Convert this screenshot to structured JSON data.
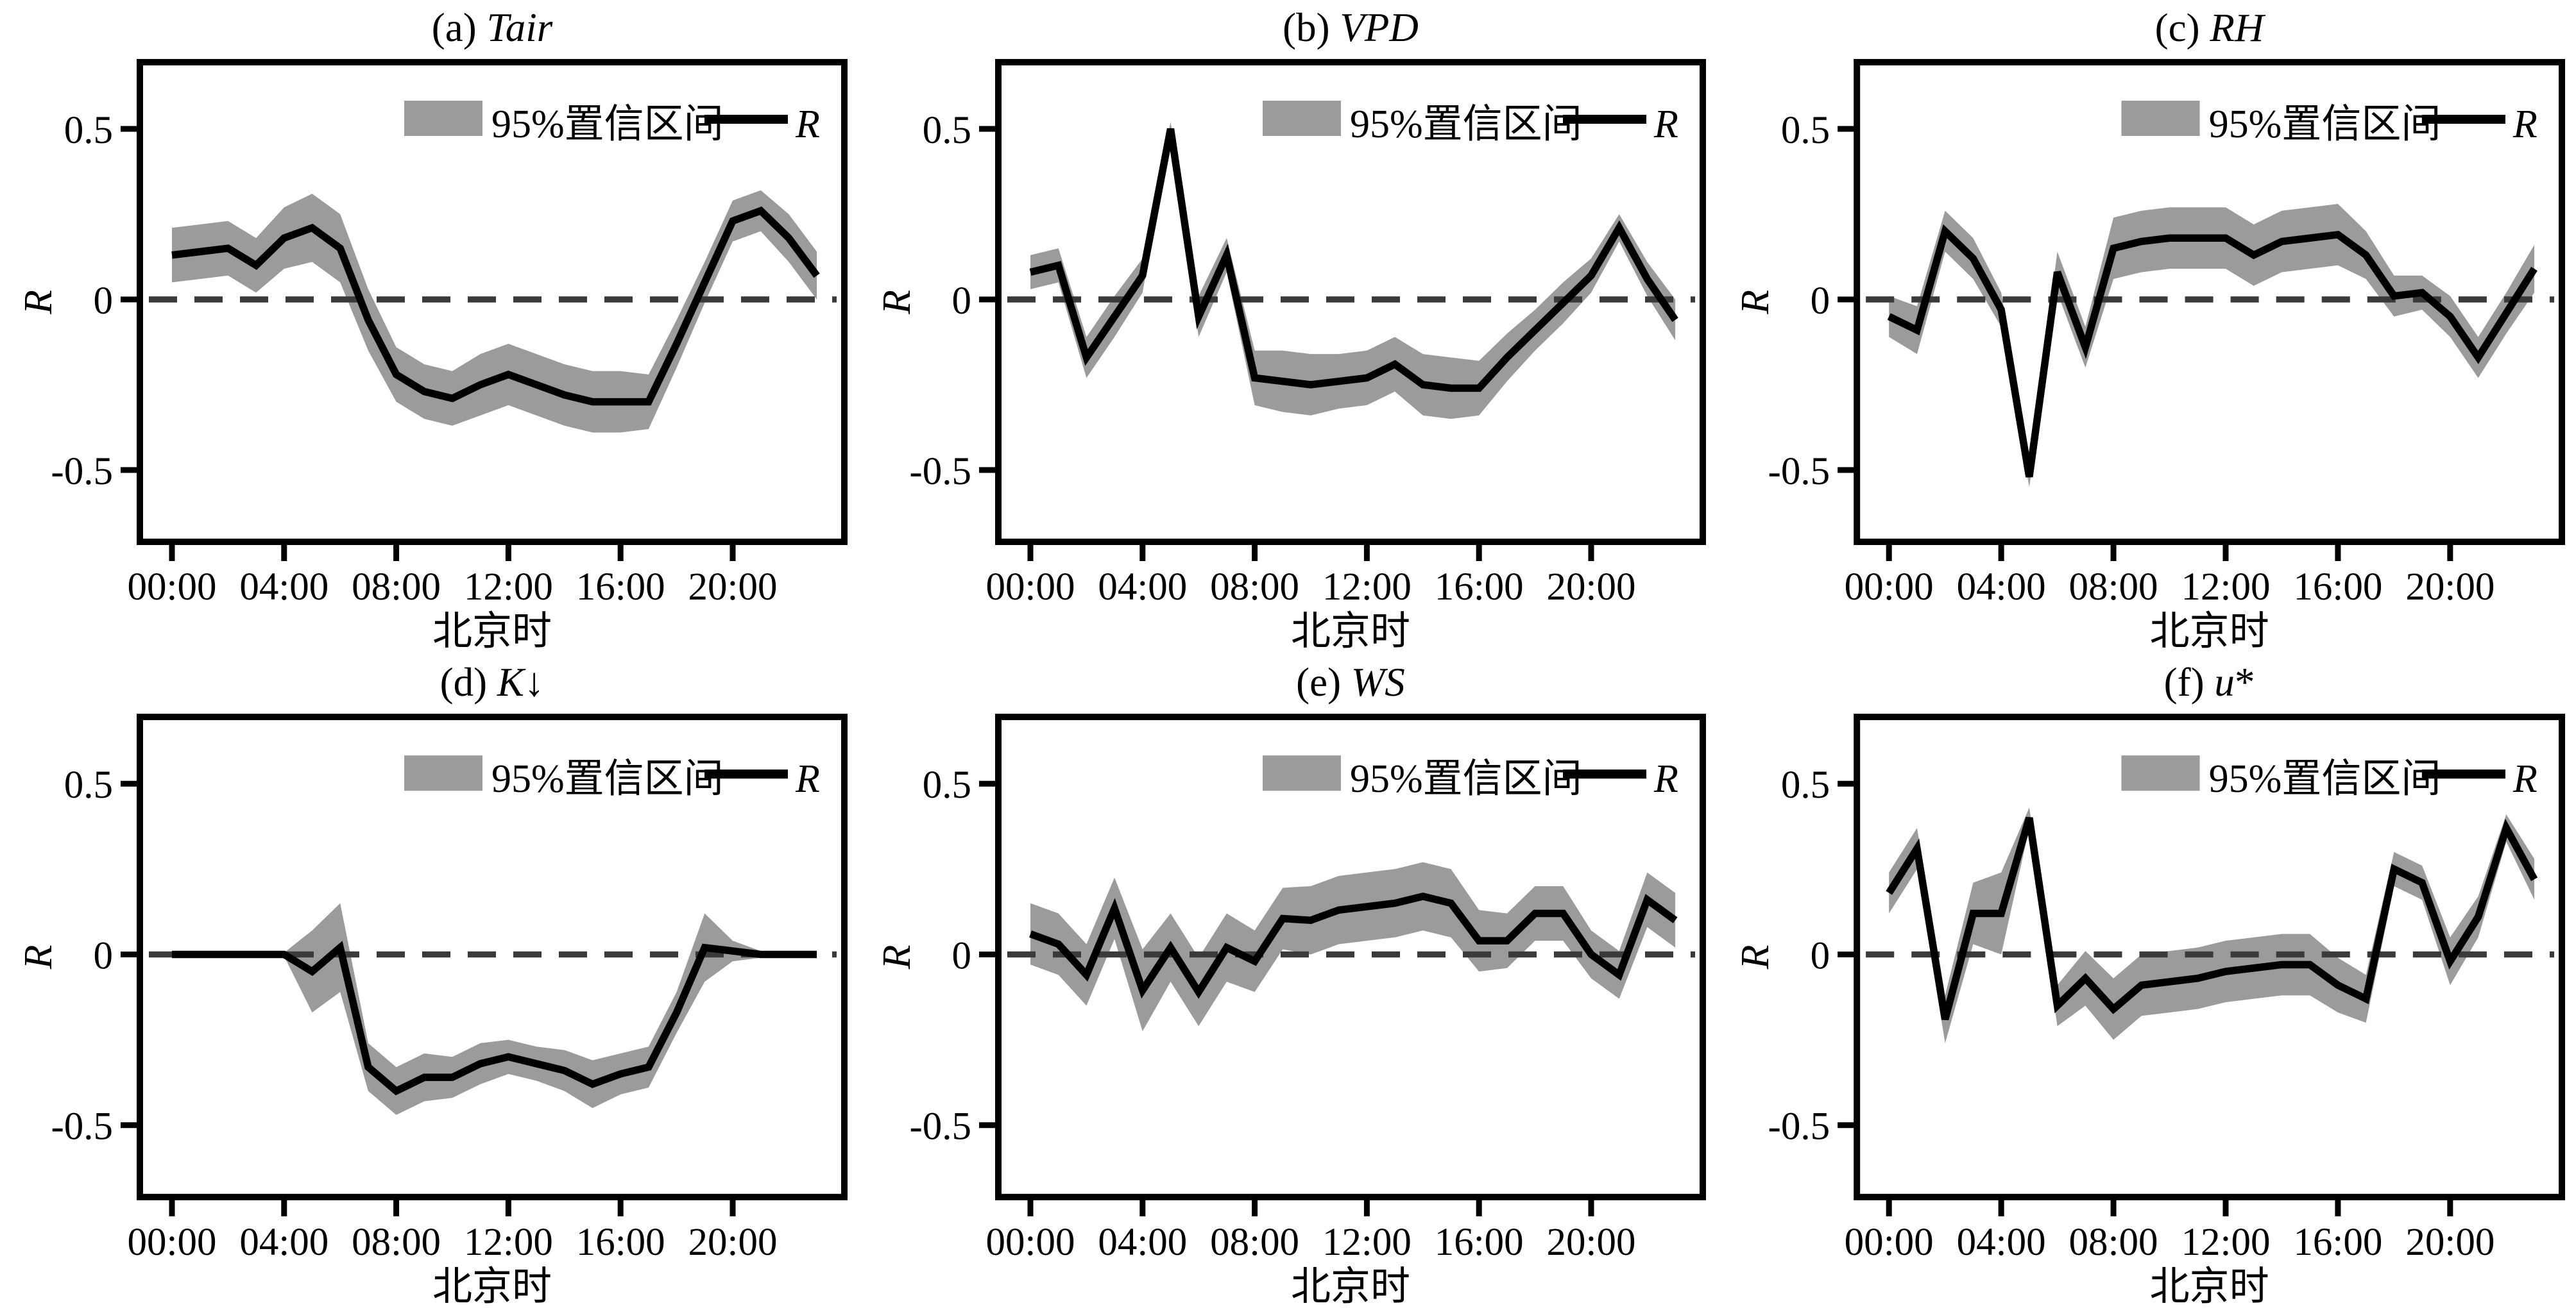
{
  "figure": {
    "background": "#ffffff",
    "colors": {
      "band": "#9b9b9b",
      "line": "#000000",
      "zero_line": "#3a3a3a",
      "frame": "#000000",
      "text": "#000000"
    }
  },
  "chart_data": {
    "type": "line",
    "description": "Six-panel figure of correlation coefficient R versus Beijing time (hourly, 00:00-23:00) with 95% confidence bands and dashed zero reference line",
    "x_hours": [
      0,
      1,
      2,
      3,
      4,
      5,
      6,
      7,
      8,
      9,
      10,
      11,
      12,
      13,
      14,
      15,
      16,
      17,
      18,
      19,
      20,
      21,
      22,
      23
    ],
    "x_tick_hours": [
      0,
      4,
      8,
      12,
      16,
      20
    ],
    "x_tick_labels": [
      "00:00",
      "04:00",
      "08:00",
      "12:00",
      "16:00",
      "20:00"
    ],
    "ylim": [
      -0.71,
      0.7
    ],
    "ytick_values": [
      0.5,
      0,
      -0.5
    ],
    "ytick_labels": [
      "0.5",
      "0",
      "-0.5"
    ],
    "xlabel": "北京时",
    "ylabel": "R",
    "legend": [
      "95%置信区间",
      "R"
    ],
    "grid": false,
    "legend_position": "top-right",
    "zero_reference_line": 0,
    "panels": [
      {
        "id": "a",
        "title": "(a) Tair",
        "title_prefix": "(a) ",
        "title_var": "Tair",
        "title_suffix": "",
        "r": [
          0.13,
          0.14,
          0.15,
          0.1,
          0.18,
          0.21,
          0.15,
          -0.06,
          -0.22,
          -0.27,
          -0.29,
          -0.25,
          -0.22,
          -0.25,
          -0.28,
          -0.3,
          -0.3,
          -0.3,
          -0.13,
          0.05,
          0.23,
          0.26,
          0.18,
          0.07
        ],
        "ci_halfwidth": [
          0.08,
          0.08,
          0.08,
          0.08,
          0.09,
          0.1,
          0.1,
          0.09,
          0.08,
          0.08,
          0.08,
          0.09,
          0.09,
          0.09,
          0.09,
          0.09,
          0.09,
          0.08,
          0.07,
          0.06,
          0.06,
          0.06,
          0.07,
          0.07
        ]
      },
      {
        "id": "b",
        "title": "(b) VPD",
        "title_prefix": "(b) ",
        "title_var": "VPD",
        "title_suffix": "",
        "r": [
          0.08,
          0.1,
          -0.17,
          -0.05,
          0.07,
          0.5,
          -0.05,
          0.13,
          -0.23,
          -0.24,
          -0.25,
          -0.24,
          -0.23,
          -0.19,
          -0.25,
          -0.26,
          -0.26,
          -0.17,
          -0.09,
          -0.01,
          0.07,
          0.21,
          0.06,
          -0.06
        ],
        "ci_halfwidth": [
          0.05,
          0.05,
          0.06,
          0.06,
          0.05,
          0.02,
          0.06,
          0.05,
          0.08,
          0.09,
          0.09,
          0.08,
          0.08,
          0.08,
          0.09,
          0.09,
          0.08,
          0.07,
          0.06,
          0.06,
          0.05,
          0.04,
          0.05,
          0.06
        ]
      },
      {
        "id": "c",
        "title": "(c) RH",
        "title_prefix": "(c) ",
        "title_var": "RH",
        "title_suffix": "",
        "r": [
          -0.05,
          -0.09,
          0.2,
          0.12,
          -0.03,
          -0.52,
          0.08,
          -0.14,
          0.15,
          0.17,
          0.18,
          0.18,
          0.18,
          0.13,
          0.17,
          0.18,
          0.19,
          0.13,
          0.01,
          0.02,
          -0.05,
          -0.17,
          -0.04,
          0.09
        ],
        "ci_halfwidth": [
          0.06,
          0.07,
          0.06,
          0.06,
          0.05,
          0.03,
          0.06,
          0.06,
          0.09,
          0.09,
          0.09,
          0.09,
          0.09,
          0.09,
          0.09,
          0.09,
          0.09,
          0.07,
          0.06,
          0.05,
          0.06,
          0.06,
          0.06,
          0.07
        ]
      },
      {
        "id": "d",
        "title": "(d) K↓",
        "title_prefix": "(d) ",
        "title_var": "K",
        "title_suffix": "↓",
        "r": [
          0.0,
          0.0,
          0.0,
          0.0,
          0.0,
          -0.05,
          0.02,
          -0.33,
          -0.4,
          -0.36,
          -0.36,
          -0.32,
          -0.3,
          -0.32,
          -0.34,
          -0.38,
          -0.35,
          -0.33,
          -0.17,
          0.02,
          0.01,
          0.0,
          0.0,
          0.0
        ],
        "ci_halfwidth": [
          0.005,
          0.005,
          0.005,
          0.005,
          0.005,
          0.12,
          0.13,
          0.07,
          0.07,
          0.07,
          0.06,
          0.06,
          0.05,
          0.05,
          0.06,
          0.07,
          0.06,
          0.06,
          0.06,
          0.1,
          0.03,
          0.01,
          0.005,
          0.005
        ]
      },
      {
        "id": "e",
        "title": "(e) WS",
        "title_prefix": "(e) ",
        "title_var": "WS",
        "title_suffix": "",
        "r": [
          0.06,
          0.03,
          -0.06,
          0.135,
          -0.105,
          0.02,
          -0.11,
          0.02,
          -0.02,
          0.105,
          0.1,
          0.13,
          0.14,
          0.15,
          0.17,
          0.15,
          0.04,
          0.04,
          0.12,
          0.12,
          0.0,
          -0.06,
          0.16,
          0.1
        ],
        "ci_halfwidth": [
          0.09,
          0.09,
          0.09,
          0.09,
          0.12,
          0.1,
          0.1,
          0.1,
          0.09,
          0.09,
          0.1,
          0.1,
          0.1,
          0.1,
          0.1,
          0.1,
          0.09,
          0.08,
          0.08,
          0.08,
          0.07,
          0.07,
          0.08,
          0.08
        ]
      },
      {
        "id": "f",
        "title": "(f) u*",
        "title_prefix": "(f) ",
        "title_var": "u",
        "title_suffix": "*",
        "r": [
          0.18,
          0.31,
          -0.19,
          0.12,
          0.12,
          0.4,
          -0.15,
          -0.07,
          -0.16,
          -0.09,
          -0.08,
          -0.07,
          -0.05,
          -0.04,
          -0.03,
          -0.03,
          -0.09,
          -0.13,
          0.25,
          0.21,
          -0.02,
          0.11,
          0.37,
          0.22
        ],
        "ci_halfwidth": [
          0.06,
          0.06,
          0.07,
          0.09,
          0.12,
          0.03,
          0.06,
          0.08,
          0.09,
          0.09,
          0.09,
          0.09,
          0.09,
          0.09,
          0.09,
          0.09,
          0.08,
          0.07,
          0.05,
          0.05,
          0.07,
          0.06,
          0.04,
          0.06
        ]
      }
    ]
  }
}
